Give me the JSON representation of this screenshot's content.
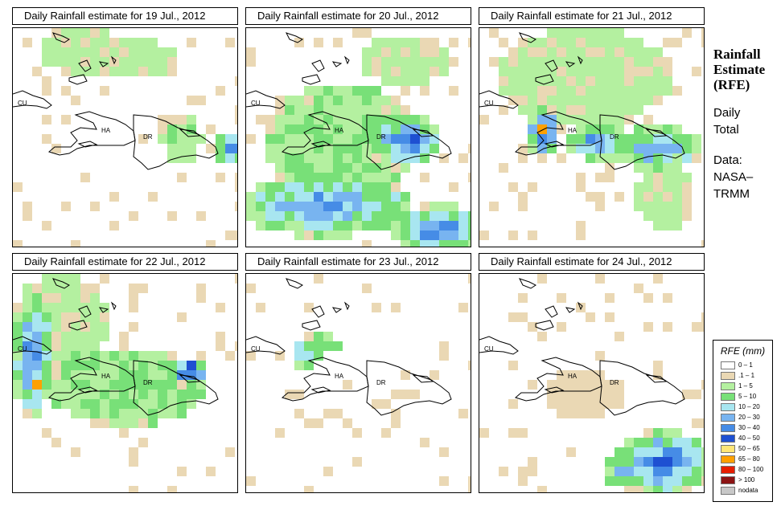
{
  "sidebar": {
    "title": "Rainfall Estimate (RFE)",
    "title_lines": [
      "Rainfall",
      "Estimate",
      "(RFE)"
    ],
    "period_lines": [
      "Daily",
      "Total"
    ],
    "source_lines": [
      "Data:",
      "NASA–",
      "TRMM"
    ]
  },
  "legend": {
    "title": "RFE (mm)",
    "items": [
      {
        "label": "0 – 1",
        "color": "#ffffff"
      },
      {
        "label": ".1 – 1",
        "color": "#ead8b4"
      },
      {
        "label": "1 – 5",
        "color": "#b4f0a0"
      },
      {
        "label": "5 – 10",
        "color": "#78e078"
      },
      {
        "label": "10 – 20",
        "color": "#a8e6f0"
      },
      {
        "label": "20 – 30",
        "color": "#78b4f0"
      },
      {
        "label": "30 – 40",
        "color": "#468ce6"
      },
      {
        "label": "40 – 50",
        "color": "#1e50d2"
      },
      {
        "label": "50 – 65",
        "color": "#ffe678"
      },
      {
        "label": "65 – 80",
        "color": "#ffa000"
      },
      {
        "label": "80 – 100",
        "color": "#e61e00"
      },
      {
        "label": "> 100",
        "color": "#8c1414"
      },
      {
        "label": "nodata",
        "color": "#c8c8c8"
      }
    ]
  },
  "map_labels": {
    "cuba": "CU",
    "haiti": "HA",
    "dominican_republic": "DR"
  },
  "panels": [
    {
      "title": "Daily Rainfall estimate for  19 Jul., 2012",
      "date": "19 Jul., 2012"
    },
    {
      "title": "Daily Rainfall estimate for  20 Jul., 2012",
      "date": "20 Jul., 2012"
    },
    {
      "title": "Daily Rainfall estimate for  21 Jul., 2012",
      "date": "21 Jul., 2012"
    },
    {
      "title": "Daily Rainfall estimate for  22 Jul., 2012",
      "date": "22 Jul., 2012"
    },
    {
      "title": "Daily Rainfall estimate for  23 Jul., 2012",
      "date": "23 Jul., 2012"
    },
    {
      "title": "Daily Rainfall estimate for  24 Jul., 2012",
      "date": "24 Jul., 2012"
    }
  ]
}
